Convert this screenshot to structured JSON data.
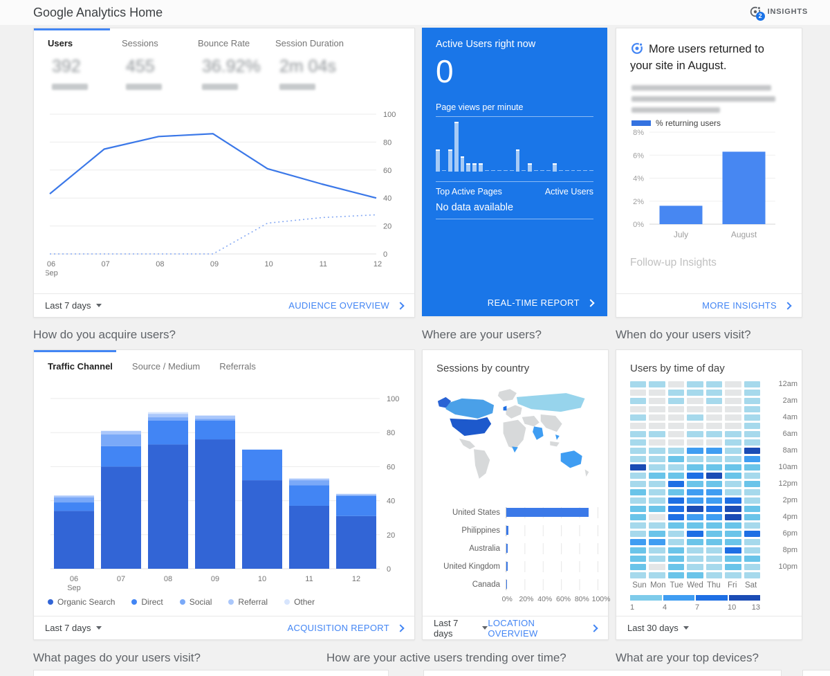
{
  "header": {
    "title": "Google Analytics Home",
    "insights": {
      "label": "INSIGHTS",
      "badge": "2"
    }
  },
  "section_headings": {
    "acquire": "How do you acquire users?",
    "where": "Where are your users?",
    "when": "When do your users visit?",
    "pages": "What pages do your users visit?",
    "trending": "How are your active users trending over time?",
    "devices": "What are your top devices?"
  },
  "audience_card": {
    "tabs": [
      {
        "label": "Users",
        "value": "392",
        "active": true
      },
      {
        "label": "Sessions",
        "value": "455",
        "active": false
      },
      {
        "label": "Bounce Rate",
        "value": "36.92%",
        "active": false
      },
      {
        "label": "Session Duration",
        "value": "2m 04s",
        "active": false
      }
    ],
    "values_blurred": true,
    "chart_data": {
      "type": "line",
      "x": [
        "06 Sep",
        "07",
        "08",
        "09",
        "10",
        "11",
        "12"
      ],
      "series": [
        {
          "name": "current-period",
          "style": "solid",
          "color": "#3b78e8",
          "values": [
            43,
            75,
            84,
            86,
            61,
            50,
            40
          ]
        },
        {
          "name": "previous-period",
          "style": "dotted",
          "color": "#85a9f3",
          "values": [
            0,
            0,
            0,
            0,
            22,
            26,
            28
          ]
        }
      ],
      "ylim": [
        0,
        100
      ],
      "yticks": [
        0,
        20,
        40,
        60,
        80,
        100
      ],
      "grid": true,
      "legend_position": "none"
    },
    "footer": {
      "range": "Last 7 days",
      "link": "AUDIENCE OVERVIEW"
    }
  },
  "realtime_card": {
    "bg_color": "#1a76e8",
    "title": "Active Users right now",
    "value": "0",
    "pageviews_label": "Page views per minute",
    "chart_data": {
      "type": "bar",
      "values": [
        3,
        0,
        3,
        7,
        2,
        1,
        1,
        1,
        0,
        0,
        0,
        0,
        0,
        3,
        0,
        1,
        0,
        0,
        0,
        1,
        0,
        0,
        0,
        0,
        0,
        0
      ]
    },
    "table_header": {
      "left": "Top Active Pages",
      "right": "Active Users"
    },
    "empty_message": "No data available",
    "footer_link": "REAL-TIME REPORT"
  },
  "insight_card": {
    "title": "More users returned to your site in August.",
    "body_blurred": true,
    "legend_label": "% returning users",
    "chart_data": {
      "type": "bar",
      "categories": [
        "July",
        "August"
      ],
      "values": [
        1.6,
        6.3
      ],
      "ylabel": "% returning users",
      "ylim": [
        0,
        8
      ],
      "yticks": [
        "0%",
        "2%",
        "4%",
        "6%",
        "8%"
      ],
      "bar_color": "#4787f2"
    },
    "followup": "Follow-up Insights",
    "footer_link": "MORE INSIGHTS"
  },
  "acquisition_card": {
    "tabs": [
      {
        "label": "Traffic Channel",
        "active": true
      },
      {
        "label": "Source / Medium",
        "active": false
      },
      {
        "label": "Referrals",
        "active": false
      }
    ],
    "chart_data": {
      "type": "stacked-bar",
      "categories": [
        "06 Sep",
        "07",
        "08",
        "09",
        "10",
        "11",
        "12"
      ],
      "series": [
        {
          "name": "Organic Search",
          "color": "#3265d6",
          "values": [
            34,
            60,
            73,
            76,
            52,
            37,
            31
          ]
        },
        {
          "name": "Direct",
          "color": "#4285f4",
          "values": [
            5,
            12,
            14,
            11,
            18,
            12,
            12
          ]
        },
        {
          "name": "Social",
          "color": "#7aa9f8",
          "values": [
            3,
            7,
            2,
            1,
            0,
            3,
            0
          ]
        },
        {
          "name": "Referral",
          "color": "#aac7fb",
          "values": [
            1,
            2,
            2,
            2,
            0,
            1,
            1
          ]
        },
        {
          "name": "Other",
          "color": "#d7e5fd",
          "values": [
            0,
            0,
            1,
            0,
            0,
            0,
            0
          ]
        }
      ],
      "ylim": [
        0,
        100
      ],
      "yticks": [
        0,
        20,
        40,
        60,
        80,
        100
      ],
      "legend_position": "bottom"
    },
    "footer": {
      "range": "Last 7 days",
      "link": "ACQUISITION REPORT"
    }
  },
  "location_card": {
    "title": "Sessions by country",
    "map": {
      "land_color": "#d7d9da",
      "highlights": {
        "united_states": "#1d59cc",
        "canada": "#4aa0e8",
        "alaska": "#2a63d4",
        "russia": "#97d4ec",
        "india": "#3f9df2",
        "australia": "#3f9df2",
        "philippines": "#3f9df2",
        "south_africa": "#3f9df2",
        "uk": "#1e6fe4"
      }
    },
    "chart_data": {
      "type": "bar",
      "orientation": "horizontal",
      "categories": [
        "United States",
        "Philippines",
        "Australia",
        "United Kingdom",
        "Canada"
      ],
      "values": [
        90,
        2,
        1.5,
        1.2,
        1
      ],
      "xticks": [
        "0%",
        "20%",
        "40%",
        "60%",
        "80%",
        "100%"
      ],
      "xlim": [
        0,
        100
      ],
      "bar_color": "#3b79e8"
    },
    "footer": {
      "range": "Last 7 days",
      "link": "LOCATION OVERVIEW"
    }
  },
  "time_card": {
    "title": "Users by time of day",
    "chart_data": {
      "type": "heatmap",
      "columns": [
        "Sun",
        "Mon",
        "Tue",
        "Wed",
        "Thu",
        "Fri",
        "Sat"
      ],
      "hour_labels": [
        "12am",
        "2am",
        "4am",
        "6am",
        "8am",
        "10am",
        "12pm",
        "2pm",
        "4pm",
        "6pm",
        "8pm",
        "10pm"
      ],
      "palette": [
        "#e4e6e7",
        "#a6d9ec",
        "#6ac4e9",
        "#3f9df2",
        "#1e6fe4",
        "#1b4cb5"
      ],
      "grid": [
        [
          1,
          1,
          0,
          1,
          1,
          0,
          1
        ],
        [
          0,
          0,
          1,
          1,
          1,
          0,
          1
        ],
        [
          1,
          0,
          1,
          0,
          1,
          0,
          1
        ],
        [
          0,
          0,
          0,
          0,
          0,
          0,
          1
        ],
        [
          1,
          0,
          0,
          1,
          0,
          0,
          1
        ],
        [
          0,
          0,
          0,
          0,
          0,
          0,
          1
        ],
        [
          1,
          1,
          0,
          1,
          1,
          1,
          1
        ],
        [
          1,
          0,
          0,
          0,
          0,
          1,
          1
        ],
        [
          1,
          1,
          1,
          3,
          3,
          1,
          5
        ],
        [
          1,
          1,
          2,
          1,
          1,
          1,
          3
        ],
        [
          5,
          1,
          1,
          2,
          2,
          2,
          2
        ],
        [
          1,
          2,
          2,
          4,
          5,
          2,
          1
        ],
        [
          1,
          1,
          4,
          2,
          2,
          1,
          2
        ],
        [
          2,
          1,
          2,
          3,
          3,
          1,
          1
        ],
        [
          1,
          1,
          4,
          3,
          3,
          4,
          1
        ],
        [
          2,
          2,
          4,
          5,
          4,
          5,
          2
        ],
        [
          2,
          0,
          4,
          3,
          3,
          5,
          2
        ],
        [
          1,
          1,
          2,
          2,
          2,
          2,
          1
        ],
        [
          1,
          2,
          1,
          4,
          2,
          2,
          4
        ],
        [
          3,
          3,
          1,
          2,
          2,
          2,
          1
        ],
        [
          2,
          1,
          2,
          1,
          1,
          4,
          1
        ],
        [
          2,
          1,
          2,
          1,
          1,
          2,
          2
        ],
        [
          2,
          0,
          2,
          1,
          1,
          2,
          1
        ],
        [
          1,
          1,
          2,
          2,
          1,
          1,
          1
        ]
      ],
      "scale": {
        "colors": [
          "#7ecbea",
          "#3f9df2",
          "#1e6fe4",
          "#1b4cb5"
        ],
        "labels": [
          "1",
          "4",
          "7",
          "10",
          "13"
        ]
      }
    },
    "footer": {
      "range": "Last 30 days"
    }
  },
  "colors": {
    "accent_blue": "#4285f4",
    "link_blue": "#4285f4"
  }
}
